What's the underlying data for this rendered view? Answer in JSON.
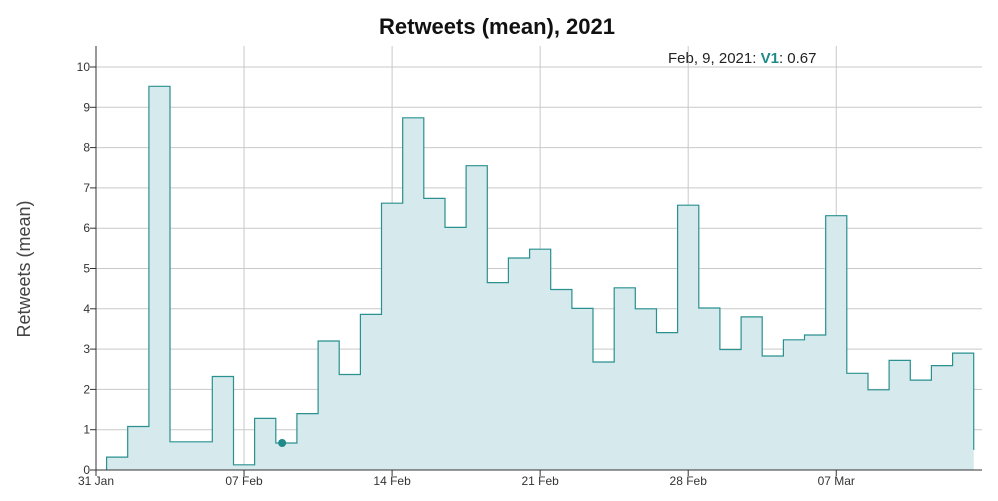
{
  "chart_data": {
    "type": "area",
    "interpolation": "step",
    "title": "Retweets (mean), 2021",
    "ylabel": "Retweets (mean)",
    "xlabel": "",
    "ylim": [
      0,
      10
    ],
    "y_ticks": [
      "0",
      "1",
      "2",
      "3",
      "4",
      "5",
      "6",
      "7",
      "8",
      "9",
      "10"
    ],
    "x_ticks": [
      {
        "label": "31 Jan",
        "day": 0
      },
      {
        "label": "07 Feb",
        "day": 7
      },
      {
        "label": "14 Feb",
        "day": 14
      },
      {
        "label": "21 Feb",
        "day": 21
      },
      {
        "label": "28 Feb",
        "day": 28
      },
      {
        "label": "07 Mar",
        "day": 35
      }
    ],
    "grid": true,
    "legend": "none",
    "colors": {
      "line": "#2a9090",
      "fill": "#d6e9ec",
      "marker": "#1f8a8a"
    },
    "series": [
      {
        "name": "V1",
        "dates": [
          "2021-02-01",
          "2021-02-02",
          "2021-02-03",
          "2021-02-04",
          "2021-02-05",
          "2021-02-06",
          "2021-02-07",
          "2021-02-08",
          "2021-02-09",
          "2021-02-10",
          "2021-02-11",
          "2021-02-12",
          "2021-02-13",
          "2021-02-14",
          "2021-02-15",
          "2021-02-16",
          "2021-02-17",
          "2021-02-18",
          "2021-02-19",
          "2021-02-20",
          "2021-02-21",
          "2021-02-22",
          "2021-02-23",
          "2021-02-24",
          "2021-02-25",
          "2021-02-26",
          "2021-02-27",
          "2021-02-28",
          "2021-03-01",
          "2021-03-02",
          "2021-03-03",
          "2021-03-04",
          "2021-03-05",
          "2021-03-06",
          "2021-03-07",
          "2021-03-08",
          "2021-03-09",
          "2021-03-10",
          "2021-03-11",
          "2021-03-12",
          "2021-03-13"
        ],
        "values": [
          0.32,
          1.08,
          9.52,
          0.7,
          0.7,
          2.32,
          0.13,
          1.28,
          0.67,
          1.4,
          3.2,
          2.37,
          3.86,
          6.62,
          8.74,
          6.74,
          6.02,
          7.55,
          4.65,
          5.26,
          5.48,
          4.48,
          4.01,
          2.68,
          4.52,
          4.0,
          3.41,
          6.57,
          4.02,
          2.99,
          3.8,
          2.83,
          3.23,
          3.35,
          6.31,
          2.4,
          1.99,
          2.72,
          2.23,
          2.59,
          2.9
        ]
      }
    ],
    "tooltip": {
      "date_label": "Feb, 9, 2021",
      "series_label": "V1",
      "value_label": "0.67",
      "point_date": "2021-02-09",
      "point_value": 0.67
    }
  }
}
